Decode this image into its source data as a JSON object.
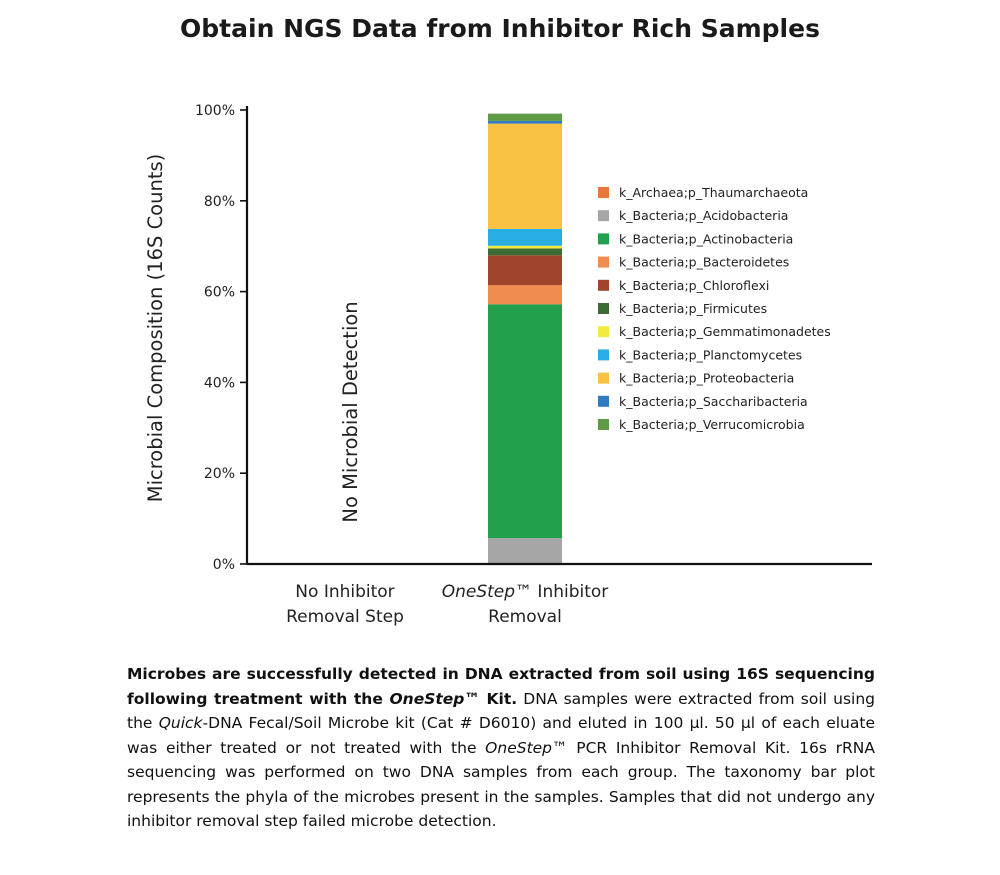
{
  "chart_data": {
    "type": "bar",
    "stacked": true,
    "title": "Obtain NGS Data from Inhibitor Rich Samples",
    "ylabel": "Microbial Composition (16S Counts)",
    "ylim": [
      0,
      100
    ],
    "yticks": [
      "0%",
      "20%",
      "40%",
      "60%",
      "80%",
      "100%"
    ],
    "categories": [
      {
        "pre": "No Inhibitor",
        "italic": "",
        "mid": "",
        "post": "Removal Step"
      },
      {
        "pre": "",
        "italic": "OneStep",
        "mid": "™ Inhibitor",
        "post": "Removal"
      }
    ],
    "no_detection_label": "No Microbial Detection",
    "legend_position": "right",
    "series": [
      {
        "name": "k_Archaea;p_Thaumarchaeota",
        "color": "#e8793a",
        "values": [
          0,
          0.0
        ]
      },
      {
        "name": "k_Bacteria;p_Acidobacteria",
        "color": "#a6a6a6",
        "values": [
          0,
          5.7
        ]
      },
      {
        "name": "k_Bacteria;p_Actinobacteria",
        "color": "#22a04b",
        "values": [
          0,
          51.5
        ]
      },
      {
        "name": "k_Bacteria;p_Bacteroidetes",
        "color": "#f08c4e",
        "values": [
          0,
          4.2
        ]
      },
      {
        "name": "k_Bacteria;p_Chloroflexi",
        "color": "#a0452b",
        "values": [
          0,
          6.6
        ]
      },
      {
        "name": "k_Bacteria;p_Firmicutes",
        "color": "#3d6b35",
        "values": [
          0,
          1.5
        ]
      },
      {
        "name": "k_Bacteria;p_Gemmatimonadetes",
        "color": "#f2ea3c",
        "values": [
          0,
          0.6
        ]
      },
      {
        "name": "k_Bacteria;p_Planctomycetes",
        "color": "#28aee3",
        "values": [
          0,
          3.7
        ]
      },
      {
        "name": "k_Bacteria;p_Proteobacteria",
        "color": "#f8c143",
        "values": [
          0,
          23.2
        ]
      },
      {
        "name": "k_Bacteria;p_Saccharibacteria",
        "color": "#2f7bbd",
        "values": [
          0,
          0.6
        ]
      },
      {
        "name": "k_Bacteria;p_Verrucomicrobia",
        "color": "#5f9a45",
        "values": [
          0,
          1.6
        ]
      }
    ]
  },
  "caption": {
    "bold_1": "Microbes are successfully detected in DNA extracted from soil using 16S sequencing following treatment with the ",
    "bold_italic": "OneStep",
    "bold_tm": "™",
    "bold_2": " Kit.",
    "t1": " DNA samples were extracted from soil using the ",
    "i1": "Quick",
    "t2": "-DNA Fecal/Soil Microbe kit (Cat # D6010) and eluted in 100 µl. 50 µl of each eluate was either treated or not treated with the ",
    "i2": "OneStep",
    "t3": "™ PCR Inhibitor Removal Kit. 16s rRNA sequencing was performed on two DNA samples from each group. The taxonomy bar plot represents the phyla of the microbes present in the samples. Samples that did not undergo any inhibitor removal step failed microbe detection."
  }
}
